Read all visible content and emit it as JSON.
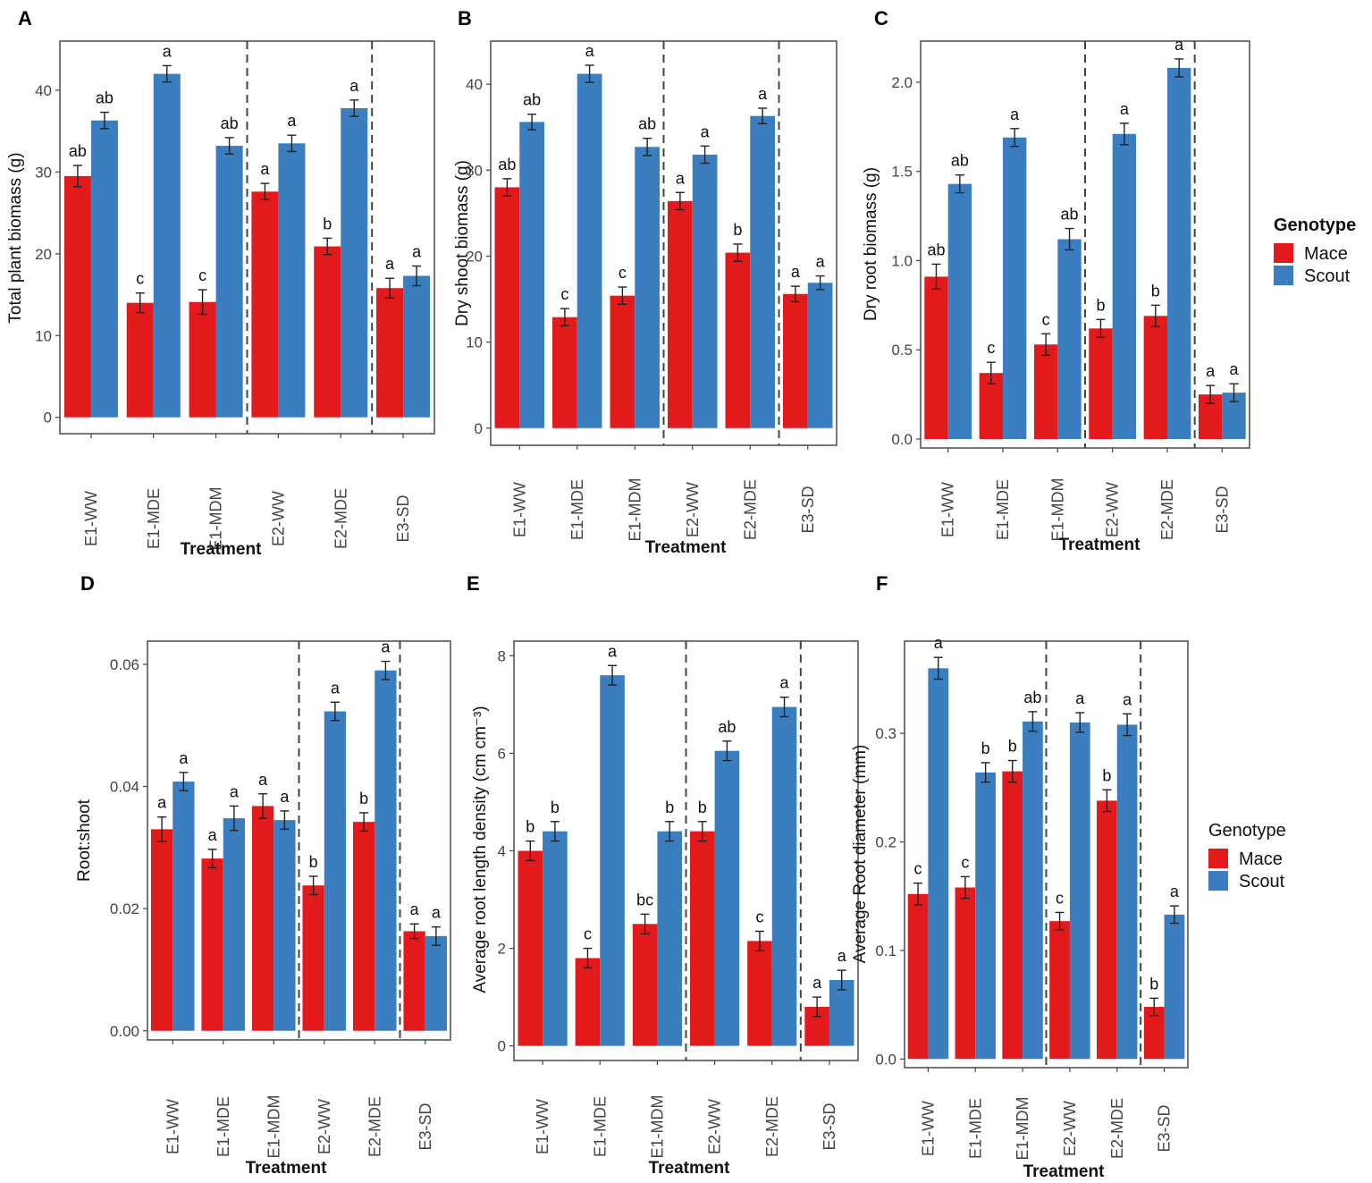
{
  "colors": {
    "mace": "#E31A1C",
    "scout": "#3A7EBF",
    "frame": "#555555"
  },
  "legends": [
    {
      "title": "Genotype",
      "items": [
        "Mace",
        "Scout"
      ]
    },
    {
      "title": "Genotype",
      "items": [
        "Mace",
        "Scout"
      ]
    }
  ],
  "chart_data": [
    {
      "type": "bar",
      "panel": "A",
      "categories": [
        "E1-WW",
        "E1-MDE",
        "E1-MDM",
        "E2-WW",
        "E2-MDE",
        "E3-SD"
      ],
      "series": [
        {
          "name": "Mace",
          "values": [
            29.5,
            14.0,
            14.1,
            27.6,
            20.9,
            15.8
          ],
          "errors": [
            1.3,
            1.2,
            1.5,
            1.0,
            1.0,
            1.2
          ],
          "labels": [
            "ab",
            "c",
            "c",
            "a",
            "b",
            "a"
          ]
        },
        {
          "name": "Scout",
          "values": [
            36.3,
            42.0,
            33.2,
            33.5,
            37.8,
            17.3
          ],
          "errors": [
            1.0,
            1.0,
            1.0,
            1.0,
            1.0,
            1.2
          ],
          "labels": [
            "ab",
            "a",
            "ab",
            "a",
            "a",
            "a"
          ]
        }
      ],
      "xlabel": "Treatment",
      "ylabel": "Total plant biomass (g)",
      "ylim": [
        -2,
        46
      ],
      "yticks": [
        0,
        10,
        20,
        30,
        40
      ],
      "ytick_labels": [
        "0",
        "10",
        "20",
        "30",
        "40"
      ]
    },
    {
      "type": "bar",
      "panel": "B",
      "categories": [
        "E1-WW",
        "E1-MDE",
        "E1-MDM",
        "E2-WW",
        "E2-MDE",
        "E3-SD"
      ],
      "series": [
        {
          "name": "Mace",
          "values": [
            28.0,
            12.9,
            15.4,
            26.4,
            20.4,
            15.6
          ],
          "errors": [
            1.0,
            1.0,
            1.0,
            1.0,
            1.0,
            0.9
          ],
          "labels": [
            "ab",
            "c",
            "c",
            "a",
            "b",
            "a"
          ]
        },
        {
          "name": "Scout",
          "values": [
            35.6,
            41.2,
            32.7,
            31.8,
            36.3,
            16.9
          ],
          "errors": [
            0.9,
            1.0,
            1.0,
            1.0,
            0.9,
            0.8
          ],
          "labels": [
            "ab",
            "a",
            "ab",
            "a",
            "a",
            "a"
          ]
        }
      ],
      "xlabel": "Treatment",
      "ylabel": "Dry shoot biomass (g)",
      "ylim": [
        -2,
        45
      ],
      "yticks": [
        0,
        10,
        20,
        30,
        40
      ],
      "ytick_labels": [
        "0",
        "10",
        "20",
        "30",
        "40"
      ]
    },
    {
      "type": "bar",
      "panel": "C",
      "categories": [
        "E1-WW",
        "E1-MDE",
        "E1-MDM",
        "E2-WW",
        "E2-MDE",
        "E3-SD"
      ],
      "series": [
        {
          "name": "Mace",
          "values": [
            0.91,
            0.37,
            0.53,
            0.62,
            0.69,
            0.25
          ],
          "errors": [
            0.07,
            0.06,
            0.06,
            0.05,
            0.06,
            0.05
          ],
          "labels": [
            "ab",
            "c",
            "c",
            "b",
            "b",
            "a"
          ]
        },
        {
          "name": "Scout",
          "values": [
            1.43,
            1.69,
            1.12,
            1.71,
            2.08,
            0.26
          ],
          "errors": [
            0.05,
            0.05,
            0.06,
            0.06,
            0.05,
            0.05
          ],
          "labels": [
            "ab",
            "a",
            "ab",
            "a",
            "a",
            "a"
          ]
        }
      ],
      "xlabel": "Treatment",
      "ylabel": "Dry root biomass (g)",
      "ylim": [
        -0.05,
        2.23
      ],
      "yticks": [
        0,
        0.5,
        1.0,
        1.5,
        2.0
      ],
      "ytick_labels": [
        "0.0",
        "0.5",
        "1.0",
        "1.5",
        "2.0"
      ]
    },
    {
      "type": "bar",
      "panel": "D",
      "categories": [
        "E1-WW",
        "E1-MDE",
        "E1-MDM",
        "E2-WW",
        "E2-MDE",
        "E3-SD"
      ],
      "series": [
        {
          "name": "Mace",
          "values": [
            0.033,
            0.0282,
            0.0368,
            0.0238,
            0.0342,
            0.0163
          ],
          "errors": [
            0.002,
            0.0015,
            0.002,
            0.0015,
            0.0015,
            0.0012
          ],
          "labels": [
            "a",
            "a",
            "a",
            "b",
            "b",
            "a"
          ]
        },
        {
          "name": "Scout",
          "values": [
            0.0408,
            0.0348,
            0.0345,
            0.0523,
            0.059,
            0.0155
          ],
          "errors": [
            0.0015,
            0.002,
            0.0015,
            0.0015,
            0.0015,
            0.0015
          ],
          "labels": [
            "a",
            "a",
            "a",
            "a",
            "a",
            "a"
          ]
        }
      ],
      "xlabel": "Treatment",
      "ylabel": "Root:shoot",
      "ylim": [
        -0.0015,
        0.0638
      ],
      "yticks": [
        0,
        0.02,
        0.04,
        0.06
      ],
      "ytick_labels": [
        "0.00",
        "0.02",
        "0.04",
        "0.06"
      ]
    },
    {
      "type": "bar",
      "panel": "E",
      "categories": [
        "E1-WW",
        "E1-MDE",
        "E1-MDM",
        "E2-WW",
        "E2-MDE",
        "E3-SD"
      ],
      "series": [
        {
          "name": "Mace",
          "values": [
            4.0,
            1.8,
            2.5,
            4.4,
            2.15,
            0.8
          ],
          "errors": [
            0.2,
            0.2,
            0.2,
            0.2,
            0.2,
            0.2
          ],
          "labels": [
            "b",
            "c",
            "bc",
            "b",
            "c",
            "a"
          ]
        },
        {
          "name": "Scout",
          "values": [
            4.4,
            7.6,
            4.4,
            6.05,
            6.95,
            1.35
          ],
          "errors": [
            0.2,
            0.2,
            0.2,
            0.2,
            0.2,
            0.2
          ],
          "labels": [
            "b",
            "a",
            "b",
            "ab",
            "a",
            "a"
          ]
        }
      ],
      "xlabel": "Treatment",
      "ylabel": "Average root length density (cm cm⁻³)",
      "ylim": [
        -0.3,
        8.3
      ],
      "yticks": [
        0,
        2,
        4,
        6,
        8
      ],
      "ytick_labels": [
        "0",
        "2",
        "4",
        "6",
        "8"
      ]
    },
    {
      "type": "bar",
      "panel": "F",
      "categories": [
        "E1-WW",
        "E1-MDE",
        "E1-MDM",
        "E2-WW",
        "E2-MDE",
        "E3-SD"
      ],
      "series": [
        {
          "name": "Mace",
          "values": [
            0.152,
            0.158,
            0.265,
            0.127,
            0.238,
            0.048
          ],
          "errors": [
            0.01,
            0.01,
            0.01,
            0.008,
            0.01,
            0.008
          ],
          "labels": [
            "c",
            "c",
            "b",
            "c",
            "b",
            "b"
          ]
        },
        {
          "name": "Scout",
          "values": [
            0.36,
            0.264,
            0.311,
            0.31,
            0.308,
            0.133
          ],
          "errors": [
            0.01,
            0.009,
            0.009,
            0.009,
            0.01,
            0.008
          ],
          "labels": [
            "a",
            "b",
            "ab",
            "a",
            "a",
            "a"
          ]
        }
      ],
      "xlabel": "Treatment",
      "ylabel": "Average Root diameter (mm)",
      "ylim": [
        -0.008,
        0.385
      ],
      "yticks": [
        0,
        0.1,
        0.2,
        0.3
      ],
      "ytick_labels": [
        "0.0",
        "0.1",
        "0.2",
        "0.3"
      ]
    }
  ]
}
